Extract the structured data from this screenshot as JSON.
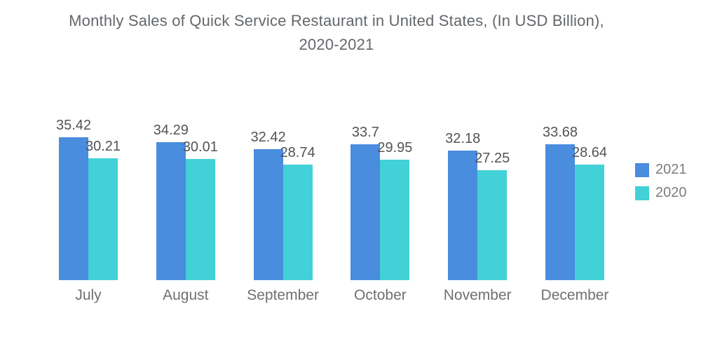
{
  "title": {
    "line1": "Monthly Sales of Quick Service Restaurant in United States, (In USD Billion),",
    "line2": "2020-2021"
  },
  "colors": {
    "series_2021": "#4A8CDE",
    "series_2020": "#41D1D6",
    "title_text": "#63676b",
    "value_label_text": "#515456",
    "axis_label_text": "#6e7073",
    "legend_text": "#7a7d81",
    "background": "#ffffff"
  },
  "chart_data": {
    "type": "bar",
    "title": "Monthly Sales of Quick Service Restaurant in United States, (In USD Billion), 2020-2021",
    "categories": [
      "July",
      "August",
      "September",
      "October",
      "November",
      "December"
    ],
    "series": [
      {
        "name": "2021",
        "color": "#4A8CDE",
        "values": [
          35.42,
          34.29,
          32.42,
          33.7,
          32.18,
          33.68
        ]
      },
      {
        "name": "2020",
        "color": "#41D1D6",
        "values": [
          30.21,
          30.01,
          28.74,
          29.95,
          27.25,
          28.64
        ]
      }
    ],
    "xlabel": "",
    "ylabel": "",
    "ylim": [
      0,
      41.7
    ],
    "grid": false,
    "axes_visible": false,
    "data_labels": true,
    "legend_position": "right"
  }
}
